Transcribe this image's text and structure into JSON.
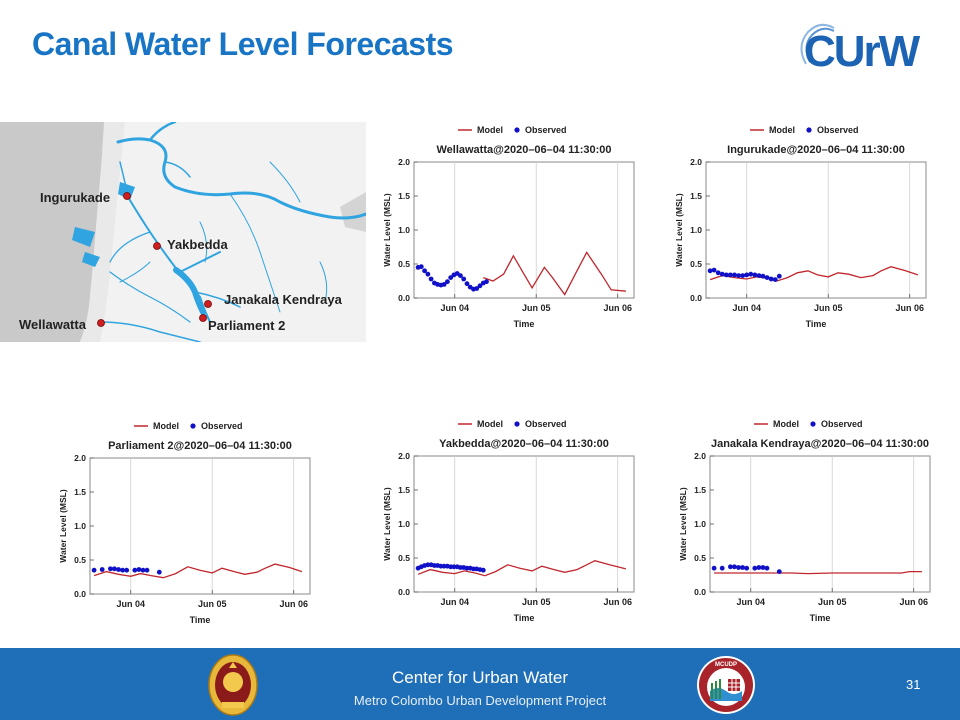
{
  "header": {
    "title": "Canal Water Level Forecasts",
    "logo_text": "CUrW"
  },
  "map": {
    "stations": [
      {
        "name": "Ingurukade"
      },
      {
        "name": "Yakbedda"
      },
      {
        "name": "Janakala Kendraya"
      },
      {
        "name": "Parliament 2"
      },
      {
        "name": "Wellawatta"
      }
    ],
    "colors": {
      "water": "#2fa4e0",
      "land": "#f2f2f2",
      "sea": "#c9c9c9",
      "marker": "#cc1f1f"
    }
  },
  "chart_data": [
    {
      "type": "line",
      "title": "Wellawatta@2020–06–04 11:30:00",
      "xlabel": "Time",
      "ylabel": "Water Level (MSL)",
      "xlim": [
        0,
        2.7
      ],
      "ylim": [
        0,
        2.0
      ],
      "x_ticks": [
        0.5,
        1.5,
        2.5
      ],
      "x_tick_labels": [
        "Jun 04",
        "Jun 05",
        "Jun 06"
      ],
      "y_ticks": [
        0,
        0.5,
        1.0,
        1.5,
        2.0
      ],
      "y_tick_labels": [
        "0.0",
        "0.5",
        "1.0",
        "1.5",
        "2.0"
      ],
      "legend": [
        "Model",
        "Observed"
      ],
      "legend_position": "top",
      "grid": true,
      "series": [
        {
          "name": "Model",
          "color": "#c1272d",
          "points": [
            [
              0.85,
              0.3
            ],
            [
              0.97,
              0.25
            ],
            [
              1.1,
              0.35
            ],
            [
              1.22,
              0.62
            ],
            [
              1.35,
              0.35
            ],
            [
              1.45,
              0.15
            ],
            [
              1.6,
              0.45
            ],
            [
              1.7,
              0.3
            ],
            [
              1.85,
              0.05
            ],
            [
              2.0,
              0.4
            ],
            [
              2.12,
              0.67
            ],
            [
              2.3,
              0.35
            ],
            [
              2.42,
              0.12
            ],
            [
              2.6,
              0.1
            ]
          ]
        },
        {
          "name": "Observed",
          "color": "#1010c8",
          "points": [
            [
              0.05,
              0.45
            ],
            [
              0.09,
              0.46
            ],
            [
              0.13,
              0.4
            ],
            [
              0.17,
              0.35
            ],
            [
              0.21,
              0.28
            ],
            [
              0.25,
              0.22
            ],
            [
              0.29,
              0.2
            ],
            [
              0.33,
              0.19
            ],
            [
              0.37,
              0.2
            ],
            [
              0.41,
              0.24
            ],
            [
              0.45,
              0.3
            ],
            [
              0.49,
              0.34
            ],
            [
              0.53,
              0.36
            ],
            [
              0.57,
              0.33
            ],
            [
              0.61,
              0.28
            ],
            [
              0.65,
              0.21
            ],
            [
              0.69,
              0.16
            ],
            [
              0.73,
              0.13
            ],
            [
              0.77,
              0.14
            ],
            [
              0.81,
              0.18
            ],
            [
              0.85,
              0.22
            ],
            [
              0.89,
              0.24
            ]
          ]
        }
      ]
    },
    {
      "type": "line",
      "title": "Ingurukade@2020–06–04 11:30:00",
      "xlabel": "Time",
      "ylabel": "Water Level (MSL)",
      "xlim": [
        0,
        2.7
      ],
      "ylim": [
        0,
        2.0
      ],
      "x_ticks": [
        0.5,
        1.5,
        2.5
      ],
      "x_tick_labels": [
        "Jun 04",
        "Jun 05",
        "Jun 06"
      ],
      "y_ticks": [
        0,
        0.5,
        1.0,
        1.5,
        2.0
      ],
      "y_tick_labels": [
        "0.0",
        "0.5",
        "1.0",
        "1.5",
        "2.0"
      ],
      "legend": [
        "Model",
        "Observed"
      ],
      "legend_position": "top",
      "grid": true,
      "series": [
        {
          "name": "Model",
          "color": "#c1272d",
          "points": [
            [
              0.05,
              0.27
            ],
            [
              0.2,
              0.33
            ],
            [
              0.35,
              0.3
            ],
            [
              0.5,
              0.28
            ],
            [
              0.62,
              0.31
            ],
            [
              0.75,
              0.29
            ],
            [
              0.87,
              0.25
            ],
            [
              1.0,
              0.3
            ],
            [
              1.12,
              0.37
            ],
            [
              1.25,
              0.4
            ],
            [
              1.37,
              0.34
            ],
            [
              1.5,
              0.31
            ],
            [
              1.62,
              0.37
            ],
            [
              1.75,
              0.35
            ],
            [
              1.9,
              0.3
            ],
            [
              2.05,
              0.33
            ],
            [
              2.15,
              0.4
            ],
            [
              2.27,
              0.46
            ],
            [
              2.45,
              0.4
            ],
            [
              2.6,
              0.34
            ]
          ]
        },
        {
          "name": "Observed",
          "color": "#1010c8",
          "points": [
            [
              0.05,
              0.4
            ],
            [
              0.1,
              0.41
            ],
            [
              0.15,
              0.37
            ],
            [
              0.2,
              0.35
            ],
            [
              0.25,
              0.34
            ],
            [
              0.3,
              0.34
            ],
            [
              0.35,
              0.34
            ],
            [
              0.4,
              0.33
            ],
            [
              0.45,
              0.33
            ],
            [
              0.5,
              0.34
            ],
            [
              0.55,
              0.35
            ],
            [
              0.6,
              0.34
            ],
            [
              0.65,
              0.33
            ],
            [
              0.7,
              0.32
            ],
            [
              0.75,
              0.3
            ],
            [
              0.8,
              0.28
            ],
            [
              0.85,
              0.27
            ],
            [
              0.9,
              0.32
            ]
          ]
        }
      ]
    },
    {
      "type": "line",
      "title": "Parliament 2@2020–06–04 11:30:00",
      "xlabel": "Time",
      "ylabel": "Water Level (MSL)",
      "xlim": [
        0,
        2.7
      ],
      "ylim": [
        0,
        2.0
      ],
      "x_ticks": [
        0.5,
        1.5,
        2.5
      ],
      "x_tick_labels": [
        "Jun 04",
        "Jun 05",
        "Jun 06"
      ],
      "y_ticks": [
        0,
        0.5,
        1.0,
        1.5,
        2.0
      ],
      "y_tick_labels": [
        "0.0",
        "0.5",
        "1.0",
        "1.5",
        "2.0"
      ],
      "legend": [
        "Model",
        "Observed"
      ],
      "legend_position": "top",
      "grid": true,
      "series": [
        {
          "name": "Model",
          "color": "#c1272d",
          "points": [
            [
              0.05,
              0.27
            ],
            [
              0.2,
              0.33
            ],
            [
              0.35,
              0.29
            ],
            [
              0.5,
              0.26
            ],
            [
              0.62,
              0.3
            ],
            [
              0.75,
              0.27
            ],
            [
              0.9,
              0.24
            ],
            [
              1.05,
              0.3
            ],
            [
              1.2,
              0.4
            ],
            [
              1.35,
              0.35
            ],
            [
              1.5,
              0.31
            ],
            [
              1.62,
              0.38
            ],
            [
              1.77,
              0.33
            ],
            [
              1.9,
              0.29
            ],
            [
              2.05,
              0.32
            ],
            [
              2.15,
              0.38
            ],
            [
              2.27,
              0.44
            ],
            [
              2.45,
              0.39
            ],
            [
              2.6,
              0.33
            ]
          ]
        },
        {
          "name": "Observed",
          "color": "#1010c8",
          "points": [
            [
              0.05,
              0.35
            ],
            [
              0.15,
              0.36
            ],
            [
              0.25,
              0.37
            ],
            [
              0.3,
              0.37
            ],
            [
              0.35,
              0.36
            ],
            [
              0.4,
              0.35
            ],
            [
              0.45,
              0.35
            ],
            [
              0.55,
              0.35
            ],
            [
              0.6,
              0.36
            ],
            [
              0.65,
              0.35
            ],
            [
              0.7,
              0.35
            ],
            [
              0.85,
              0.32
            ]
          ]
        }
      ]
    },
    {
      "type": "line",
      "title": "Yakbedda@2020–06–04 11:30:00",
      "xlabel": "Time",
      "ylabel": "Water Level (MSL)",
      "xlim": [
        0,
        2.7
      ],
      "ylim": [
        0,
        2.0
      ],
      "x_ticks": [
        0.5,
        1.5,
        2.5
      ],
      "x_tick_labels": [
        "Jun 04",
        "Jun 05",
        "Jun 06"
      ],
      "y_ticks": [
        0,
        0.5,
        1.0,
        1.5,
        2.0
      ],
      "y_tick_labels": [
        "0.0",
        "0.5",
        "1.0",
        "1.5",
        "2.0"
      ],
      "legend": [
        "Model",
        "Observed"
      ],
      "legend_position": "top",
      "grid": true,
      "series": [
        {
          "name": "Model",
          "color": "#c1272d",
          "points": [
            [
              0.05,
              0.26
            ],
            [
              0.2,
              0.33
            ],
            [
              0.35,
              0.29
            ],
            [
              0.5,
              0.27
            ],
            [
              0.62,
              0.31
            ],
            [
              0.75,
              0.28
            ],
            [
              0.87,
              0.24
            ],
            [
              1.0,
              0.3
            ],
            [
              1.15,
              0.4
            ],
            [
              1.3,
              0.35
            ],
            [
              1.45,
              0.31
            ],
            [
              1.57,
              0.38
            ],
            [
              1.72,
              0.33
            ],
            [
              1.85,
              0.29
            ],
            [
              2.0,
              0.33
            ],
            [
              2.12,
              0.4
            ],
            [
              2.22,
              0.46
            ],
            [
              2.4,
              0.4
            ],
            [
              2.6,
              0.34
            ]
          ]
        },
        {
          "name": "Observed",
          "color": "#1010c8",
          "points": [
            [
              0.05,
              0.35
            ],
            [
              0.09,
              0.37
            ],
            [
              0.13,
              0.39
            ],
            [
              0.17,
              0.4
            ],
            [
              0.21,
              0.4
            ],
            [
              0.25,
              0.39
            ],
            [
              0.29,
              0.39
            ],
            [
              0.33,
              0.38
            ],
            [
              0.37,
              0.38
            ],
            [
              0.41,
              0.38
            ],
            [
              0.45,
              0.37
            ],
            [
              0.49,
              0.37
            ],
            [
              0.53,
              0.37
            ],
            [
              0.57,
              0.36
            ],
            [
              0.61,
              0.36
            ],
            [
              0.65,
              0.35
            ],
            [
              0.69,
              0.35
            ],
            [
              0.73,
              0.34
            ],
            [
              0.77,
              0.34
            ],
            [
              0.81,
              0.33
            ],
            [
              0.85,
              0.32
            ]
          ]
        }
      ]
    },
    {
      "type": "line",
      "title": "Janakala Kendraya@2020–06–04 11:30:00",
      "xlabel": "Time",
      "ylabel": "Water Level (MSL)",
      "xlim": [
        0,
        2.7
      ],
      "ylim": [
        0,
        2.0
      ],
      "x_ticks": [
        0.5,
        1.5,
        2.5
      ],
      "x_tick_labels": [
        "Jun 04",
        "Jun 05",
        "Jun 06"
      ],
      "y_ticks": [
        0,
        0.5,
        1.0,
        1.5,
        2.0
      ],
      "y_tick_labels": [
        "0.0",
        "0.5",
        "1.0",
        "1.5",
        "2.0"
      ],
      "legend": [
        "Model",
        "Observed"
      ],
      "legend_position": "top",
      "grid": true,
      "series": [
        {
          "name": "Model",
          "color": "#c1272d",
          "points": [
            [
              0.05,
              0.28
            ],
            [
              0.5,
              0.28
            ],
            [
              1.0,
              0.28
            ],
            [
              1.2,
              0.27
            ],
            [
              1.5,
              0.28
            ],
            [
              2.0,
              0.28
            ],
            [
              2.35,
              0.28
            ],
            [
              2.45,
              0.3
            ],
            [
              2.6,
              0.3
            ]
          ]
        },
        {
          "name": "Observed",
          "color": "#1010c8",
          "points": [
            [
              0.05,
              0.35
            ],
            [
              0.15,
              0.35
            ],
            [
              0.25,
              0.37
            ],
            [
              0.3,
              0.37
            ],
            [
              0.35,
              0.36
            ],
            [
              0.4,
              0.36
            ],
            [
              0.45,
              0.35
            ],
            [
              0.55,
              0.35
            ],
            [
              0.6,
              0.36
            ],
            [
              0.65,
              0.36
            ],
            [
              0.7,
              0.35
            ],
            [
              0.85,
              0.3
            ]
          ]
        }
      ]
    }
  ],
  "footer": {
    "org": "Center for Urban Water",
    "sub": "Metro Colombo Urban Development Project",
    "page": "31",
    "badge_text": "MCUDP"
  }
}
